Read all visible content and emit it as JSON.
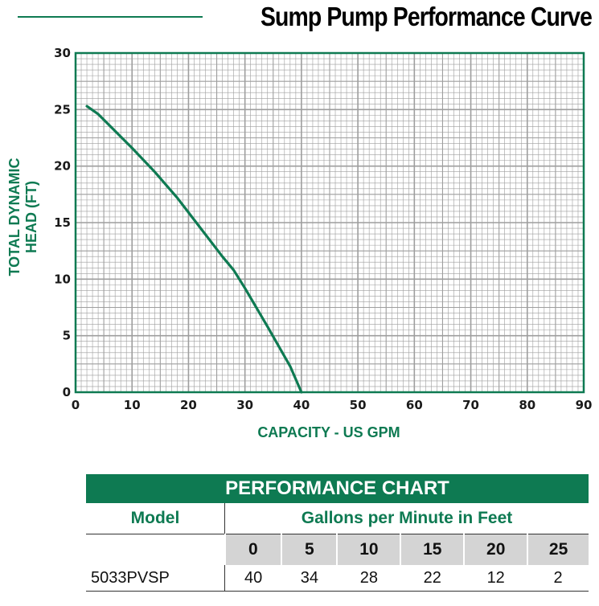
{
  "title": "Sump Pump Performance Curve",
  "chart_data": {
    "type": "line",
    "xlabel": "CAPACITY - US GPM",
    "ylabel_lines": [
      "TOTAL DYNAMIC",
      "HEAD (FT)"
    ],
    "xlim": [
      0,
      90
    ],
    "ylim": [
      0,
      30
    ],
    "x_ticks": [
      "0",
      "10",
      "20",
      "30",
      "40",
      "50",
      "60",
      "70",
      "80",
      "90"
    ],
    "y_ticks": [
      "0",
      "5",
      "10",
      "15",
      "20",
      "25",
      "30"
    ],
    "grid": true,
    "series": [
      {
        "color": "#0e7a52",
        "points": [
          [
            2,
            25.3
          ],
          [
            4,
            24.6
          ],
          [
            6,
            23.6
          ],
          [
            10,
            21.6
          ],
          [
            14,
            19.5
          ],
          [
            18,
            17.2
          ],
          [
            22,
            14.6
          ],
          [
            26,
            12.0
          ],
          [
            28,
            10.8
          ],
          [
            30,
            9.2
          ],
          [
            34,
            5.8
          ],
          [
            38,
            2.3
          ],
          [
            40,
            0
          ]
        ]
      }
    ]
  },
  "performance_chart": {
    "title": "PERFORMANCE CHART",
    "model_header": "Model",
    "gpm_header": "Gallons per Minute in Feet",
    "head_values": [
      "0",
      "5",
      "10",
      "15",
      "20",
      "25"
    ],
    "rows": [
      {
        "model": "5033PVSP",
        "values": [
          "40",
          "34",
          "28",
          "22",
          "12",
          "2"
        ]
      }
    ]
  },
  "colors": {
    "accent": "#0e7a52",
    "grid": "#9e9e9e",
    "header_cell_bg": "#d4d4d4"
  }
}
